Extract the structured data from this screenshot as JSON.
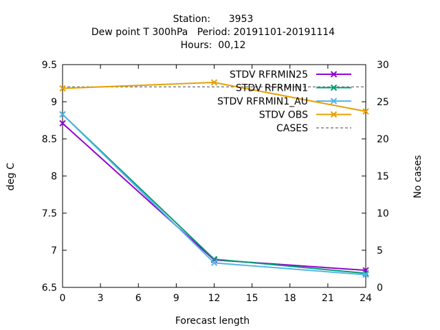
{
  "chart_data": {
    "type": "line",
    "title_lines": [
      "Station:      3953",
      "Dew point T 300hPa   Period: 20191101-20191114",
      "Hours:  00,12"
    ],
    "xlabel": "Forecast length",
    "ylabel": "deg C",
    "y2label": "No cases",
    "xlim": [
      0,
      24
    ],
    "ylim": [
      6.5,
      9.5
    ],
    "y2lim": [
      0,
      30
    ],
    "xticks": [
      "0",
      "3",
      "6",
      "9",
      "12",
      "15",
      "18",
      "21",
      "24"
    ],
    "yticks": [
      "6.5",
      "7",
      "7.5",
      "8",
      "8.5",
      "9",
      "9.5"
    ],
    "y2ticks": [
      "0",
      "5",
      "10",
      "15",
      "20",
      "25",
      "30"
    ],
    "grid": false,
    "legend_position": "top-right",
    "x": [
      0,
      12,
      24
    ],
    "series": [
      {
        "name": "STDV RFRMIN25",
        "axis": "left",
        "color": "#9400d3",
        "marker": "x",
        "values": [
          8.71,
          6.87,
          6.73
        ]
      },
      {
        "name": "STDV RFRMIN1",
        "axis": "left",
        "color": "#009e73",
        "marker": "x",
        "values": [
          8.83,
          6.88,
          6.69
        ]
      },
      {
        "name": "STDV RFRMIN1_AU",
        "axis": "left",
        "color": "#56b4e9",
        "marker": "x",
        "values": [
          8.83,
          6.83,
          6.67
        ]
      },
      {
        "name": "STDV OBS",
        "axis": "left",
        "color": "#e69f00",
        "marker": "x",
        "values": [
          9.18,
          9.26,
          8.87
        ]
      },
      {
        "name": "CASES",
        "axis": "right",
        "color": "#808080",
        "marker": "none",
        "dashed": true,
        "values": [
          27,
          27,
          27
        ]
      }
    ]
  }
}
